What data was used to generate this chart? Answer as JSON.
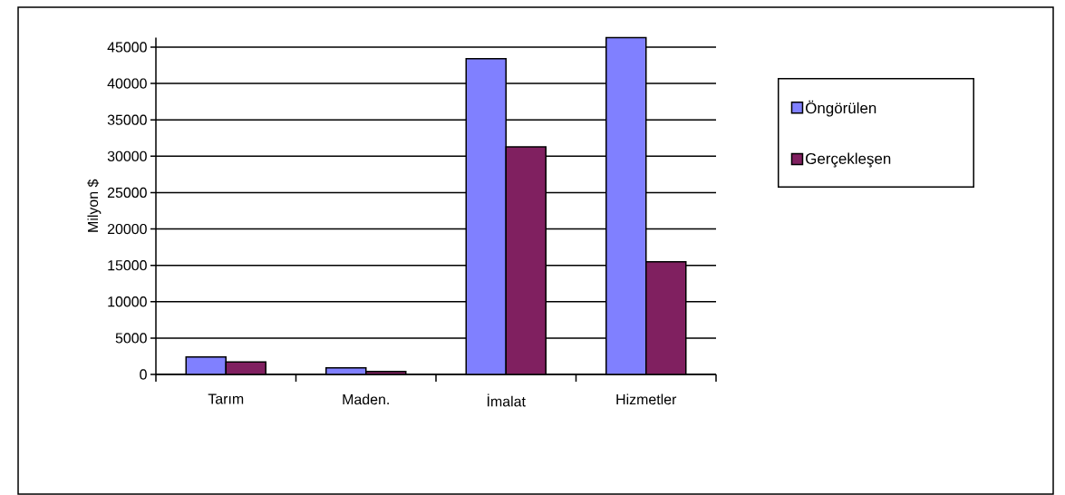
{
  "chart_data": {
    "type": "bar",
    "ylabel": "Milyon $",
    "categories": [
      "Tarım",
      "Maden.",
      "İmalat",
      "Hizmetler"
    ],
    "series": [
      {
        "name": "Öngörülen",
        "color": "#8080ff",
        "values": [
          2400,
          900,
          43400,
          46300
        ]
      },
      {
        "name": "Gerçekleşen",
        "color": "#802060",
        "values": [
          1700,
          400,
          31300,
          15500
        ]
      }
    ],
    "ylim": [
      0,
      46300
    ],
    "yticks": [
      0,
      5000,
      10000,
      15000,
      20000,
      25000,
      30000,
      35000,
      40000,
      45000
    ],
    "grid": "y",
    "legend": "right"
  }
}
